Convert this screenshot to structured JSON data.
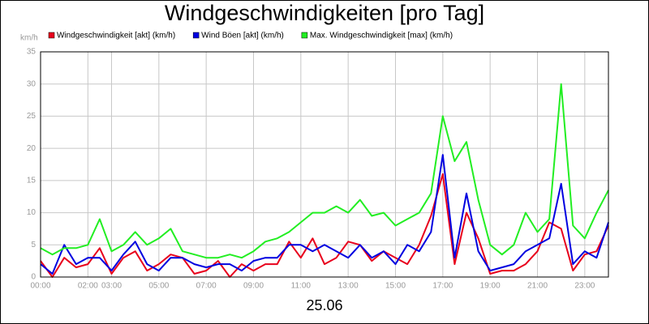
{
  "chart_data": {
    "type": "line",
    "title": "Windgeschwindigkeiten [pro Tag]",
    "y_unit": "km/h",
    "x_label": "25.06",
    "x": [
      0,
      0.5,
      1,
      1.5,
      2,
      2.5,
      3,
      3.5,
      4,
      4.5,
      5,
      5.5,
      6,
      6.5,
      7,
      7.5,
      8,
      8.5,
      9,
      9.5,
      10,
      10.5,
      11,
      11.5,
      12,
      12.5,
      13,
      13.5,
      14,
      14.5,
      15,
      15.5,
      16,
      16.5,
      17,
      17.5,
      18,
      18.5,
      19,
      19.5,
      20,
      20.5,
      21,
      21.5,
      22,
      22.5,
      23,
      23.5,
      24
    ],
    "series": [
      {
        "name": "Windgeschwindigkeit [akt] (km/h)",
        "color": "#e8001c",
        "values": [
          2.5,
          0,
          3,
          1.5,
          2,
          4.5,
          0.5,
          3,
          4,
          1,
          2,
          3.5,
          3,
          0.5,
          1,
          2.5,
          0,
          2,
          1,
          2,
          2,
          5.5,
          3,
          6,
          2,
          3,
          5.5,
          5,
          2.5,
          4,
          3,
          2,
          5,
          9.5,
          16,
          2,
          10,
          6,
          0.5,
          1,
          1,
          2,
          4,
          8.5,
          7.5,
          1,
          3.5,
          4,
          8
        ]
      },
      {
        "name": "Wind Böen [akt] (km/h)",
        "color": "#0000e0",
        "values": [
          2,
          0.5,
          5,
          2,
          3,
          3,
          1,
          3.5,
          5.5,
          2,
          1,
          3,
          3,
          2,
          1.5,
          2,
          2,
          1,
          2.5,
          3,
          3,
          5,
          5,
          4,
          5,
          4,
          3,
          5,
          3,
          4,
          2,
          5,
          4,
          7,
          19,
          3,
          13,
          4,
          1,
          1.5,
          2,
          4,
          5,
          6,
          14.5,
          2,
          4,
          3,
          8.5
        ]
      },
      {
        "name": "Max. Windgeschwindigkeit [max] (km/h)",
        "color": "#22ee22",
        "values": [
          4.5,
          3.5,
          4.5,
          4.5,
          5,
          9,
          4,
          5,
          7,
          5,
          6,
          7.5,
          4,
          3.5,
          3,
          3,
          3.5,
          3,
          4,
          5.5,
          6,
          7,
          8.5,
          10,
          10,
          11,
          10,
          12,
          9.5,
          10,
          8,
          9,
          10,
          13,
          25,
          18,
          21,
          12,
          5,
          3.5,
          5,
          10,
          7,
          9,
          30,
          8,
          6,
          10,
          13.5
        ]
      }
    ],
    "xlim": [
      0,
      24
    ],
    "xticks": [
      {
        "value": 0,
        "label": "00:00"
      },
      {
        "value": 2,
        "label": "02:00"
      },
      {
        "value": 3,
        "label": "03:00"
      },
      {
        "value": 5,
        "label": "05:00"
      },
      {
        "value": 7,
        "label": "07:00"
      },
      {
        "value": 9,
        "label": "09:00"
      },
      {
        "value": 11,
        "label": "11:00"
      },
      {
        "value": 13,
        "label": "13:00"
      },
      {
        "value": 15,
        "label": "15:00"
      },
      {
        "value": 17,
        "label": "17:00"
      },
      {
        "value": 19,
        "label": "19:00"
      },
      {
        "value": 21,
        "label": "21:00"
      },
      {
        "value": 23,
        "label": "23:00"
      }
    ],
    "ylim": [
      0,
      35
    ],
    "yticks": [
      0,
      5,
      10,
      15,
      20,
      25,
      30,
      35
    ],
    "grid": true
  }
}
